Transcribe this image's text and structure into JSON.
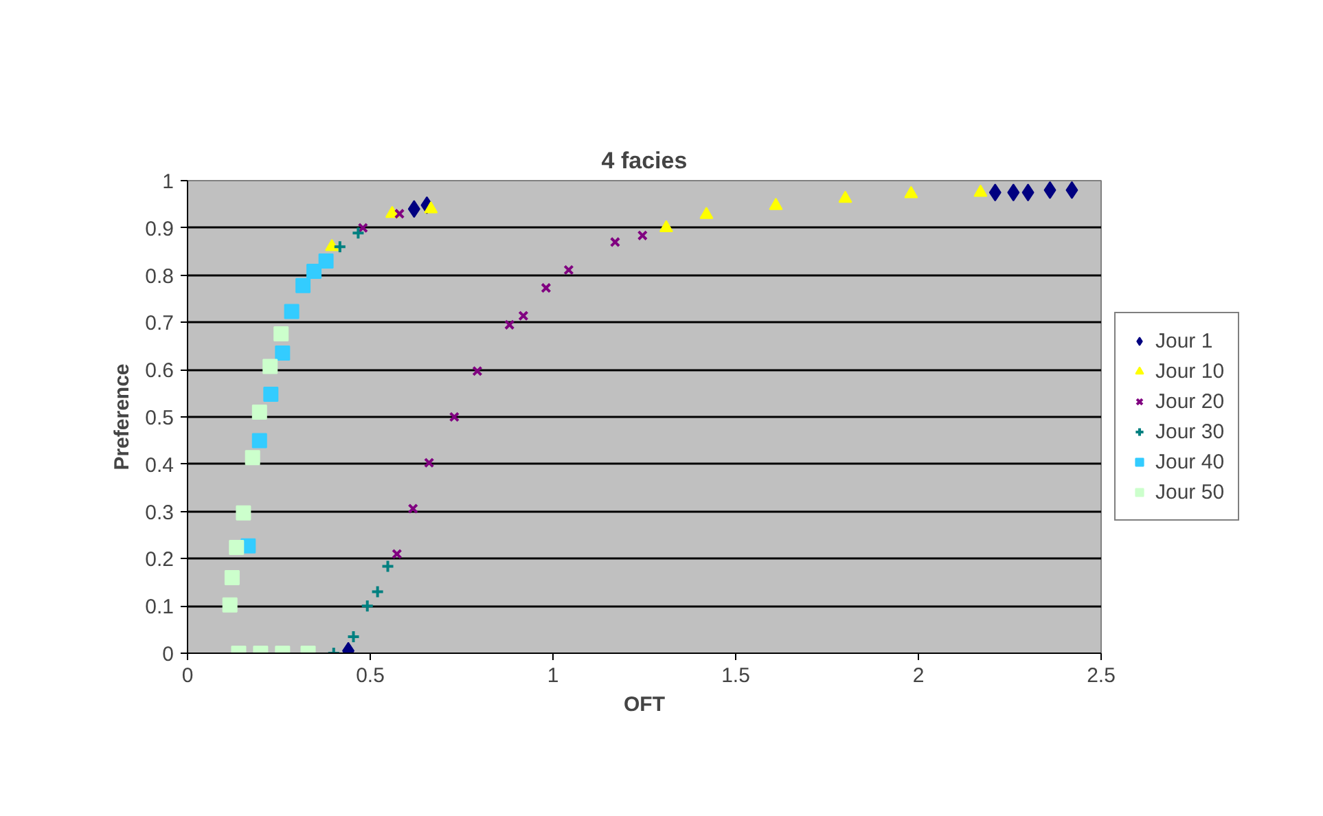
{
  "chart_data": {
    "type": "scatter",
    "title": "4 facies",
    "xlabel": "OFT",
    "ylabel": "Preference",
    "xlim": [
      0,
      2.5
    ],
    "xticks": [
      0,
      0.5,
      1,
      1.5,
      2,
      2.5
    ],
    "ylim": [
      0,
      1
    ],
    "yticks": [
      0,
      0.1,
      0.2,
      0.3,
      0.4,
      0.5,
      0.6,
      0.7,
      0.8,
      0.9,
      1
    ],
    "grid": "y",
    "legend": "right",
    "series": [
      {
        "name": "Jour 1",
        "color": "#000080",
        "marker": "diamond",
        "x": [
          0.44,
          0.62,
          0.655,
          2.21,
          2.26,
          2.3,
          2.36,
          2.42
        ],
        "values": [
          0.005,
          0.94,
          0.948,
          0.975,
          0.975,
          0.975,
          0.98,
          0.98
        ]
      },
      {
        "name": "Jour 10",
        "color": "#ffff00",
        "marker": "triangle",
        "x": [
          0.395,
          0.56,
          0.666,
          1.31,
          1.42,
          1.61,
          1.8,
          1.98,
          2.17
        ],
        "values": [
          0.86,
          0.93,
          0.94,
          0.9,
          0.928,
          0.947,
          0.962,
          0.972,
          0.975
        ]
      },
      {
        "name": "Jour 20",
        "color": "#800080",
        "marker": "x",
        "x": [
          0.48,
          0.58,
          0.573,
          0.617,
          0.661,
          0.73,
          0.793,
          0.881,
          0.919,
          0.981,
          1.043,
          1.17,
          1.245
        ],
        "values": [
          0.9,
          0.93,
          0.21,
          0.306,
          0.403,
          0.5,
          0.597,
          0.695,
          0.714,
          0.773,
          0.811,
          0.87,
          0.884
        ]
      },
      {
        "name": "Jour 30",
        "color": "#008080",
        "marker": "cross",
        "x": [
          0.417,
          0.467,
          0.4,
          0.454,
          0.492,
          0.52,
          0.548
        ],
        "values": [
          0.86,
          0.889,
          0.0,
          0.035,
          0.1,
          0.13,
          0.184
        ]
      },
      {
        "name": "Jour 40",
        "color": "#33ccff",
        "marker": "square",
        "x": [
          0.166,
          0.197,
          0.228,
          0.26,
          0.285,
          0.316,
          0.346,
          0.379
        ],
        "values": [
          0.227,
          0.45,
          0.548,
          0.635,
          0.723,
          0.778,
          0.808,
          0.83
        ]
      },
      {
        "name": "Jour 50",
        "color": "#ccffcc",
        "marker": "square",
        "x": [
          0.14,
          0.2,
          0.26,
          0.33,
          0.116,
          0.122,
          0.134,
          0.153,
          0.178,
          0.197,
          0.226,
          0.256
        ],
        "values": [
          0,
          0,
          0,
          0,
          0.102,
          0.16,
          0.224,
          0.297,
          0.414,
          0.51,
          0.607,
          0.676
        ]
      }
    ]
  }
}
